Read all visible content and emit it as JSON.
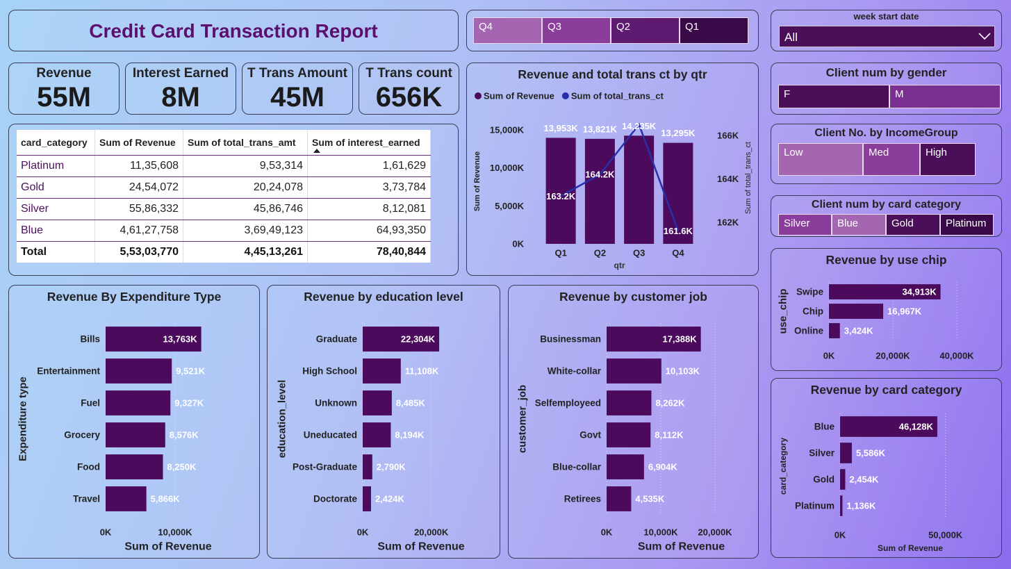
{
  "header": {
    "title": "Credit Card Transaction Report"
  },
  "quarter_slicer": {
    "items": [
      "Q4",
      "Q3",
      "Q2",
      "Q1"
    ]
  },
  "week_slicer": {
    "label": "week start date",
    "value": "All"
  },
  "kpis": [
    {
      "label": "Revenue",
      "value": "55M"
    },
    {
      "label": "Interest Earned",
      "value": "8M"
    },
    {
      "label": "T Trans Amount",
      "value": "45M"
    },
    {
      "label": "T Trans count",
      "value": "656K"
    }
  ],
  "table": {
    "columns": [
      "card_category",
      "Sum of Revenue",
      "Sum of total_trans_amt",
      "Sum of interest_earned"
    ],
    "rows": [
      [
        "Platinum",
        "11,35,608",
        "9,53,314",
        "1,61,629"
      ],
      [
        "Gold",
        "24,54,072",
        "20,24,078",
        "3,73,784"
      ],
      [
        "Silver",
        "55,86,332",
        "45,86,746",
        "8,12,081"
      ],
      [
        "Blue",
        "4,61,27,758",
        "3,69,49,123",
        "64,93,350"
      ]
    ],
    "total": [
      "Total",
      "5,53,03,770",
      "4,45,13,261",
      "78,40,844"
    ]
  },
  "gender_slicer": {
    "title": "Client num by gender",
    "items": [
      "F",
      "M"
    ]
  },
  "income_slicer": {
    "title": "Client No. by IncomeGroup",
    "items": [
      "Low",
      "Med",
      "High"
    ]
  },
  "card_slicer": {
    "title": "Client num by card category",
    "items": [
      "Silver",
      "Blue",
      "Gold",
      "Platinum"
    ]
  },
  "chart_data": [
    {
      "type": "combo",
      "title": "Revenue and total trans ct by qtr",
      "x_label": "qtr",
      "y_label": "Sum of Revenue",
      "y2_label": "Sum of total_trans_ct",
      "legend": "top-left",
      "categories": [
        "Q1",
        "Q2",
        "Q3",
        "Q4"
      ],
      "series": [
        {
          "name": "Sum of Revenue",
          "color": "#4b0a5c",
          "values": [
            13953000,
            13821000,
            14235000,
            13295000
          ],
          "value_labels": [
            "13,953K",
            "13,821K",
            "14,235K",
            "13,295K"
          ]
        },
        {
          "name": "Sum of total_trans_ct",
          "color": "#2630a8",
          "axis": "y2",
          "values": [
            163200,
            164200,
            166500,
            161600
          ],
          "value_labels": [
            "163.2K",
            "164.2K",
            null,
            "161.6K"
          ]
        }
      ],
      "ylim": [
        0,
        16000000
      ],
      "yticks": [
        {
          "value": 0,
          "label": "0K"
        },
        {
          "value": 5000000,
          "label": "5,000K"
        },
        {
          "value": 10000000,
          "label": "10,000K"
        },
        {
          "value": 15000000,
          "label": "15,000K"
        }
      ],
      "y2lim": [
        161000,
        166600
      ],
      "y2ticks": [
        {
          "value": 162000,
          "label": "162K"
        },
        {
          "value": 164000,
          "label": "164K"
        },
        {
          "value": 166000,
          "label": "166K"
        }
      ]
    },
    {
      "type": "hbar",
      "title": "Revenue By Expenditure Type",
      "x_label": "Sum of Revenue",
      "y_label": "Expenditure type",
      "color": "#4b0a5c",
      "grid": true,
      "categories": [
        "Bills",
        "Entertainment",
        "Fuel",
        "Grocery",
        "Food",
        "Travel"
      ],
      "values": [
        13763000,
        9521000,
        9327000,
        8576000,
        8250000,
        5866000
      ],
      "value_labels": [
        "13,763K",
        "9,521K",
        "9,327K",
        "8,576K",
        "8,250K",
        "5,866K"
      ],
      "xlim": [
        0,
        16000000
      ],
      "xticks": [
        {
          "value": 0,
          "label": "0K"
        },
        {
          "value": 10000000,
          "label": "10,000K"
        }
      ]
    },
    {
      "type": "hbar",
      "title": "Revenue by education level",
      "x_label": "Sum of Revenue",
      "y_label": "education_level",
      "color": "#4b0a5c",
      "grid": true,
      "categories": [
        "Graduate",
        "High School",
        "Unknown",
        "Uneducated",
        "Post-Graduate",
        "Doctorate"
      ],
      "values": [
        22304000,
        11108000,
        8485000,
        8194000,
        2790000,
        2424000
      ],
      "value_labels": [
        "22,304K",
        "11,108K",
        "8,485K",
        "8,194K",
        "2,790K",
        "2,424K"
      ],
      "xlim": [
        0,
        30000000
      ],
      "xticks": [
        {
          "value": 0,
          "label": "0K"
        },
        {
          "value": 20000000,
          "label": "20,000K"
        }
      ]
    },
    {
      "type": "hbar",
      "title": "Revenue by customer job",
      "x_label": "Sum of Revenue",
      "y_label": "customer_job",
      "color": "#4b0a5c",
      "grid": true,
      "categories": [
        "Businessman",
        "White-collar",
        "Selfemployeed",
        "Govt",
        "Blue-collar",
        "Retirees"
      ],
      "values": [
        17388000,
        10103000,
        8262000,
        8112000,
        6904000,
        4535000
      ],
      "value_labels": [
        "17,388K",
        "10,103K",
        "8,262K",
        "8,112K",
        "6,904K",
        "4,535K"
      ],
      "xlim": [
        0,
        25000000
      ],
      "xticks": [
        {
          "value": 0,
          "label": "0K"
        },
        {
          "value": 10000000,
          "label": "10,000K"
        },
        {
          "value": 20000000,
          "label": "20,000K"
        }
      ]
    },
    {
      "type": "hbar",
      "title": "Revenue by use chip",
      "y_label": "use_chip",
      "color": "#4b0a5c",
      "grid": true,
      "categories": [
        "Swipe",
        "Chip",
        "Online"
      ],
      "values": [
        34913000,
        16967000,
        3424000
      ],
      "value_labels": [
        "34,913K",
        "16,967K",
        "3,424K"
      ],
      "xlim": [
        0,
        50000000
      ],
      "xticks": [
        {
          "value": 0,
          "label": "0K"
        },
        {
          "value": 20000000,
          "label": "20,000K"
        },
        {
          "value": 40000000,
          "label": "40,000K"
        }
      ]
    },
    {
      "type": "hbar",
      "title": "Revenue by card category",
      "x_label": "Sum of Revenue",
      "y_label": "card_category",
      "color": "#4b0a5c",
      "grid": true,
      "categories": [
        "Blue",
        "Silver",
        "Gold",
        "Platinum"
      ],
      "values": [
        46128000,
        5586000,
        2454000,
        1136000
      ],
      "value_labels": [
        "46,128K",
        "5,586K",
        "2,454K",
        "1,136K"
      ],
      "xlim": [
        0,
        60000000
      ],
      "xticks": [
        {
          "value": 0,
          "label": "0K"
        },
        {
          "value": 50000000,
          "label": "50,000K"
        }
      ]
    }
  ]
}
